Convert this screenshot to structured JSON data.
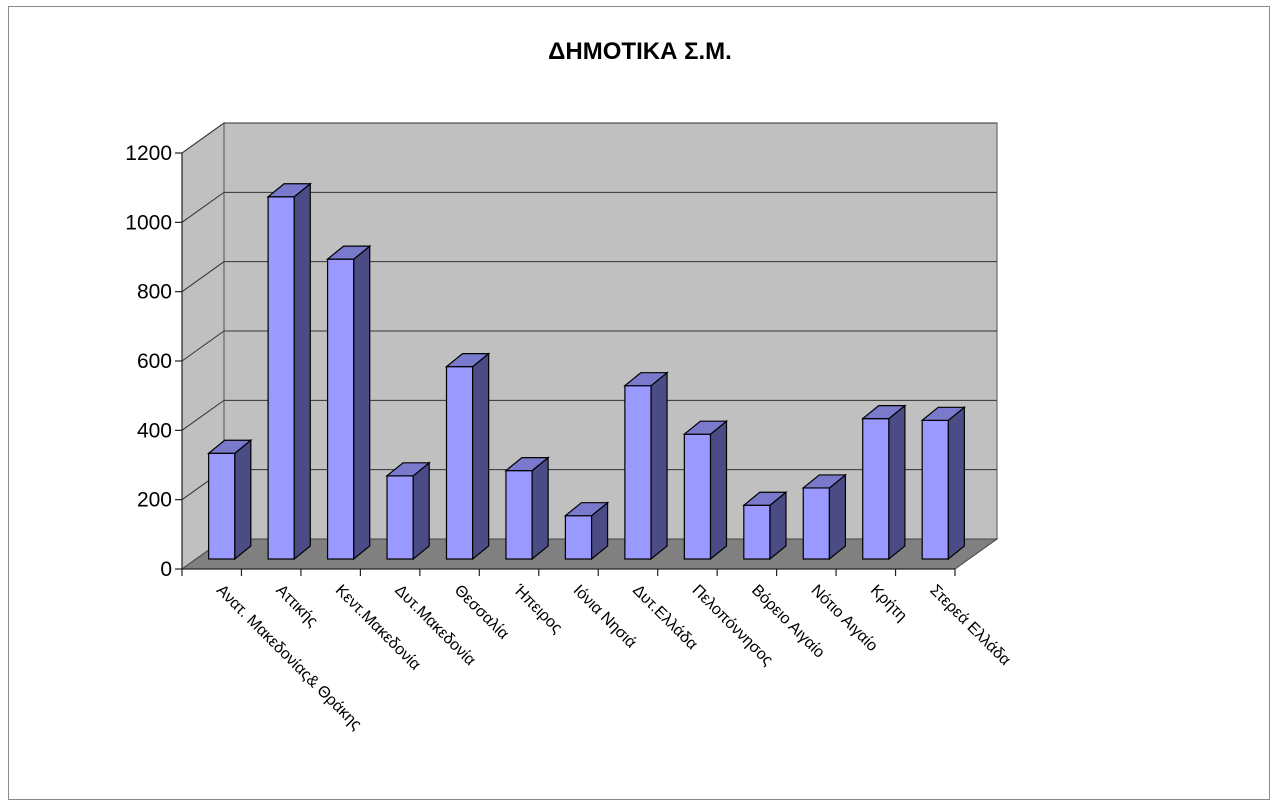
{
  "chart_data": {
    "type": "bar",
    "title": "ΔΗΜΟΤΙΚΑ Σ.Μ.",
    "xlabel": "",
    "ylabel": "",
    "ylim": [
      0,
      1200
    ],
    "yticks": [
      0,
      200,
      400,
      600,
      800,
      1000,
      1200
    ],
    "grid": true,
    "legend": "none",
    "style": "3d-column",
    "categories": [
      "Ανατ. Μακεδονίας& Θράκης",
      "Αττικής",
      "Κεντ.Μακεδονία",
      "Δυτ.Μακεδονία",
      "Θεσσαλία",
      "Ήπειρος",
      "Ιόνια Νησιά",
      "Δυτ.Ελλάδα",
      "Πελοπόννησος",
      "Βόρειο Αιγαίο",
      "Νότιο Αιγαίο",
      "Κρήτη",
      "Στερεά Ελλάδα"
    ],
    "values": [
      305,
      1045,
      865,
      240,
      555,
      255,
      125,
      500,
      360,
      155,
      205,
      405,
      400
    ],
    "colors": {
      "bar_front": "#9999ff",
      "bar_side": "#4b4b85",
      "bar_top": "#7a7acc",
      "wall": "#c0c0c0",
      "floor": "#808080"
    }
  }
}
